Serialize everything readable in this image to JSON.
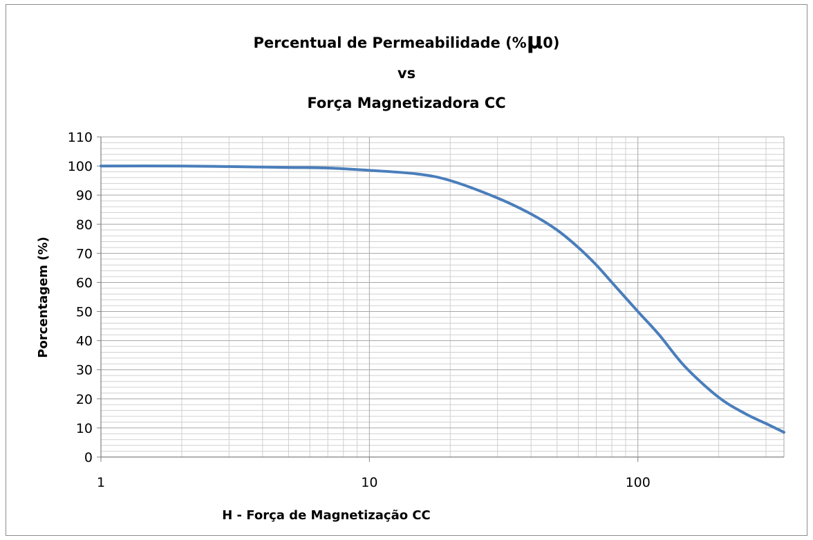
{
  "chart_data": {
    "type": "line",
    "title_parts": [
      "Percentual de Permeabilidade (%",
      "μ",
      "0)"
    ],
    "title_line2": "vs",
    "title_line3": "Força Magnetizadora CC",
    "xlabel": "H - Força de Magnetização CC",
    "ylabel": "Porcentagem (%)",
    "xscale": "log",
    "xlim": [
      1,
      350
    ],
    "ylim": [
      0,
      110
    ],
    "x_tick_labels": [
      "1",
      "10",
      "100"
    ],
    "y_tick_labels": [
      "0",
      "10",
      "20",
      "30",
      "40",
      "50",
      "60",
      "70",
      "80",
      "90",
      "100",
      "110"
    ],
    "grid": true,
    "legend": "none",
    "series": [
      {
        "color": "#4a7ebb",
        "x": [
          1,
          2,
          3,
          5,
          7,
          10,
          15,
          20,
          30,
          40,
          50,
          60,
          70,
          80,
          100,
          120,
          150,
          200,
          250,
          300,
          350
        ],
        "y": [
          100,
          100,
          99.8,
          99.5,
          99.3,
          98.5,
          97.3,
          95,
          89,
          83.5,
          78,
          72,
          66,
          60,
          50,
          42,
          31,
          20.5,
          15,
          11.5,
          8.5
        ]
      }
    ]
  }
}
